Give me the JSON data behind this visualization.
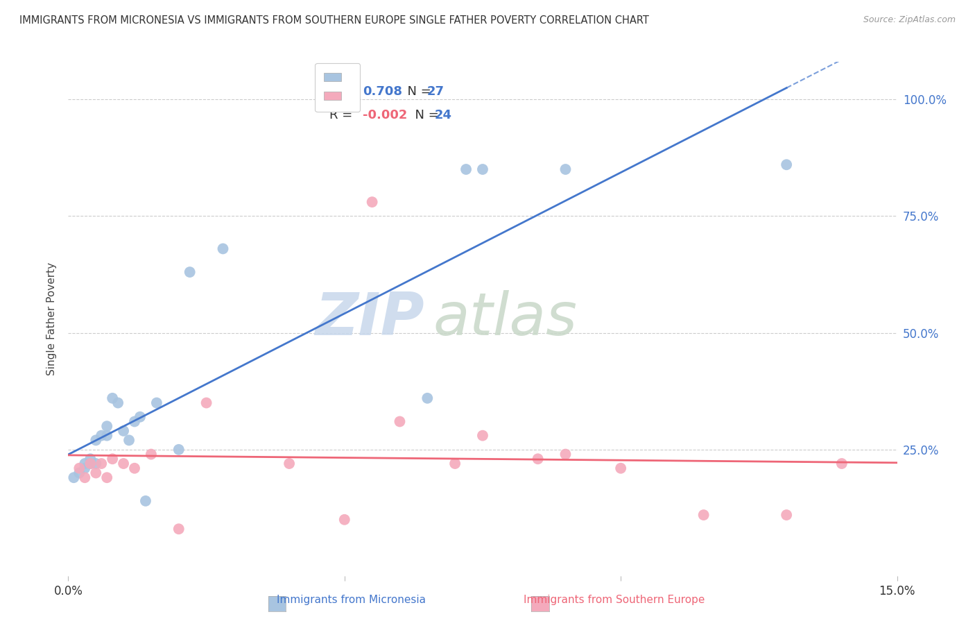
{
  "title": "IMMIGRANTS FROM MICRONESIA VS IMMIGRANTS FROM SOUTHERN EUROPE SINGLE FATHER POVERTY CORRELATION CHART",
  "source": "Source: ZipAtlas.com",
  "ylabel": "Single Father Poverty",
  "legend_label_blue": "Immigrants from Micronesia",
  "legend_label_pink": "Immigrants from Southern Europe",
  "R_blue": 0.708,
  "N_blue": 27,
  "R_pink": -0.002,
  "N_pink": 24,
  "xlim": [
    0.0,
    0.15
  ],
  "ylim": [
    -0.02,
    1.08
  ],
  "blue_color": "#A8C4E0",
  "pink_color": "#F4AABC",
  "line_blue": "#4477CC",
  "line_pink": "#EE6677",
  "watermark_zip": "ZIP",
  "watermark_atlas": "atlas",
  "grid_color": "#CCCCCC",
  "background_color": "#FFFFFF",
  "blue_x": [
    0.001,
    0.002,
    0.003,
    0.003,
    0.004,
    0.004,
    0.005,
    0.005,
    0.006,
    0.007,
    0.007,
    0.008,
    0.009,
    0.01,
    0.011,
    0.012,
    0.013,
    0.014,
    0.016,
    0.02,
    0.022,
    0.028,
    0.065,
    0.072,
    0.075,
    0.09,
    0.13
  ],
  "blue_y": [
    0.19,
    0.2,
    0.21,
    0.22,
    0.22,
    0.23,
    0.22,
    0.27,
    0.28,
    0.28,
    0.3,
    0.36,
    0.35,
    0.29,
    0.27,
    0.31,
    0.32,
    0.14,
    0.35,
    0.25,
    0.63,
    0.68,
    0.36,
    0.85,
    0.85,
    0.85,
    0.86
  ],
  "pink_x": [
    0.002,
    0.003,
    0.004,
    0.005,
    0.006,
    0.007,
    0.008,
    0.01,
    0.012,
    0.015,
    0.02,
    0.025,
    0.04,
    0.05,
    0.055,
    0.06,
    0.07,
    0.075,
    0.085,
    0.09,
    0.1,
    0.115,
    0.13,
    0.14
  ],
  "pink_y": [
    0.21,
    0.19,
    0.22,
    0.2,
    0.22,
    0.19,
    0.23,
    0.22,
    0.21,
    0.24,
    0.08,
    0.35,
    0.22,
    0.1,
    0.78,
    0.31,
    0.22,
    0.28,
    0.23,
    0.24,
    0.21,
    0.11,
    0.11,
    0.22
  ],
  "right_yticks": [
    0.25,
    0.5,
    0.75,
    1.0
  ],
  "right_yticklabels": [
    "25.0%",
    "50.0%",
    "75.0%",
    "100.0%"
  ]
}
